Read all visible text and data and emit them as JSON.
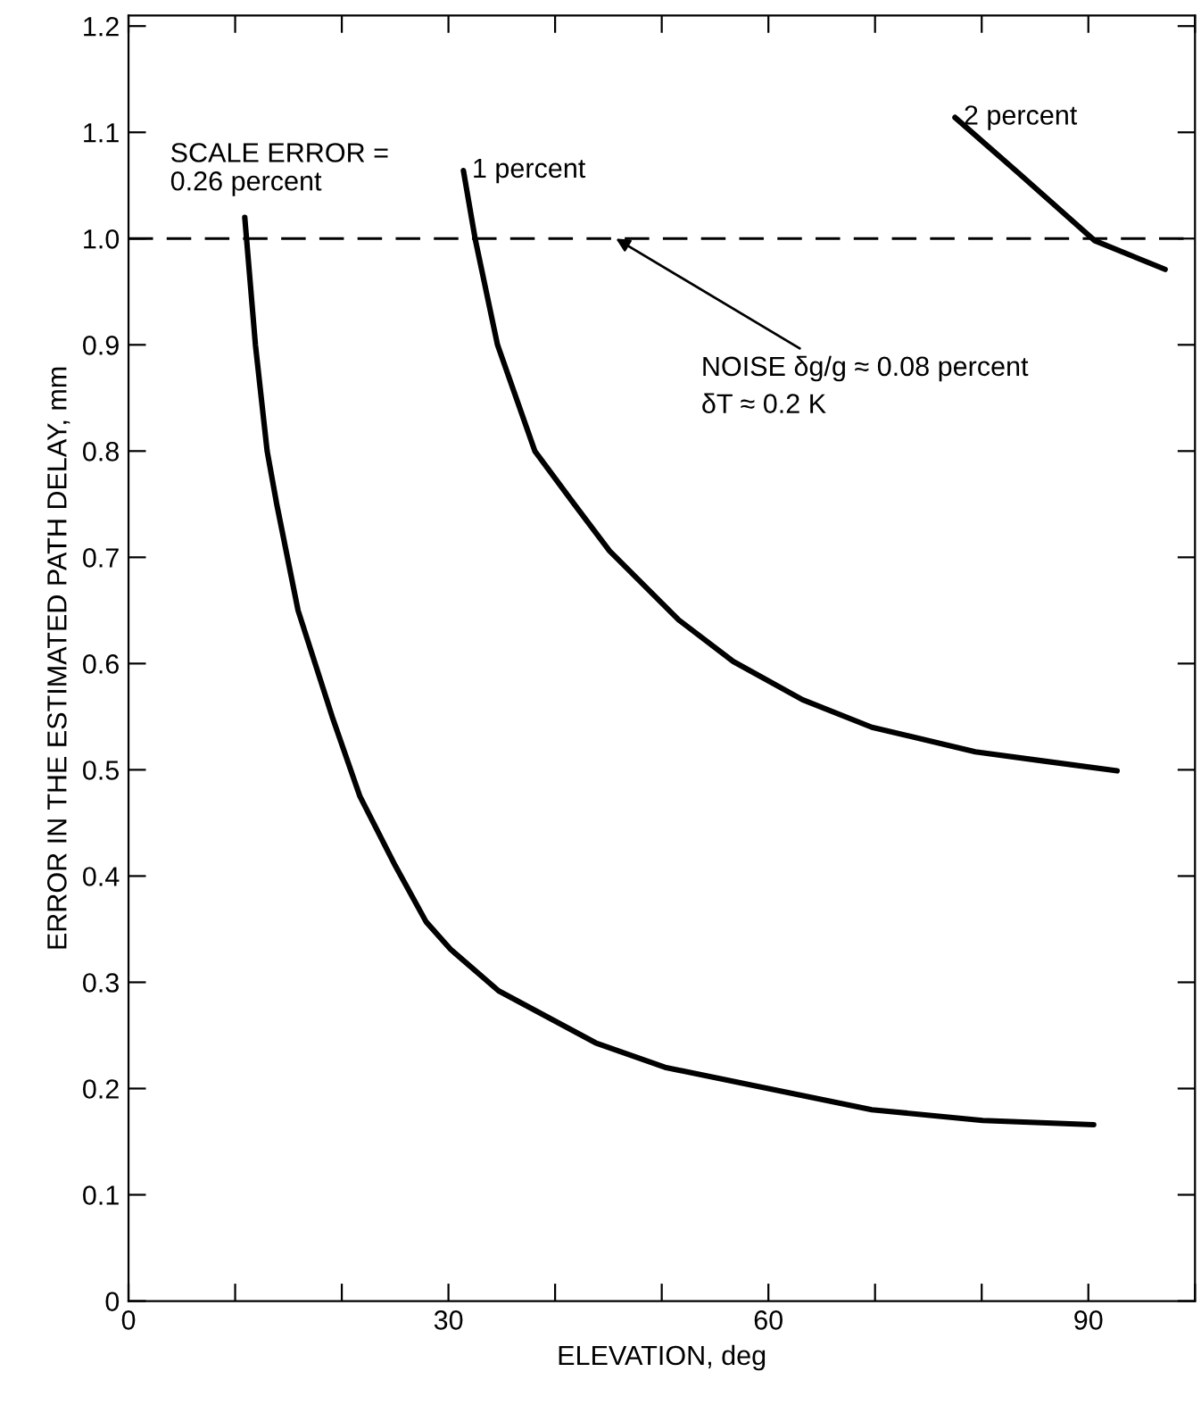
{
  "chart_data": {
    "type": "line",
    "xlabel": "ELEVATION, deg",
    "ylabel": "ERROR IN THE ESTIMATED PATH DELAY, mm",
    "xlim": [
      0,
      100
    ],
    "ylim": [
      0,
      1.21
    ],
    "xticks": [
      0,
      {
        "value": 10,
        "label": null
      },
      {
        "value": 20,
        "label": null
      },
      30,
      {
        "value": 40,
        "label": null
      },
      {
        "value": 50,
        "label": null
      },
      60,
      {
        "value": 70,
        "label": null
      },
      {
        "value": 80,
        "label": null
      },
      90,
      {
        "value": 100,
        "label": null
      }
    ],
    "yticks": [
      0,
      0.1,
      0.2,
      0.3,
      0.4,
      0.5,
      0.6,
      0.7,
      0.8,
      0.9,
      {
        "value": 1.0,
        "label": "1.0"
      },
      1.1,
      1.2
    ],
    "grid": false,
    "marker": "none",
    "line_style": "solid",
    "series": [
      {
        "name": "SCALE ERROR =\n0.26 percent",
        "color": "#000000",
        "x": [
          10.9,
          11.9,
          13.0,
          13.9,
          15.9,
          19.1,
          21.7,
          25.0,
          27.9,
          30.2,
          34.7,
          43.8,
          50.3,
          60,
          69.7,
          80.1,
          90.5
        ],
        "values": [
          1.02,
          0.9,
          0.8,
          0.75,
          0.65,
          0.55,
          0.475,
          0.41,
          0.357,
          0.331,
          0.292,
          0.243,
          0.22,
          0.2,
          0.18,
          0.17,
          0.166
        ]
      },
      {
        "name": "1 percent",
        "color": "#000000",
        "x": [
          31.4,
          32.5,
          34.6,
          38.1,
          41.8,
          45.1,
          51.6,
          56.7,
          63.2,
          69.7,
          79.4,
          86,
          92.7
        ],
        "values": [
          1.064,
          1.0,
          0.9,
          0.8,
          0.75,
          0.706,
          0.641,
          0.602,
          0.566,
          0.54,
          0.517,
          0.508,
          0.499
        ]
      },
      {
        "name": "2 percent",
        "color": "#000000",
        "x": [
          77.5,
          83.3,
          90.6,
          97.2
        ],
        "values": [
          1.114,
          1.063,
          0.998,
          0.971
        ]
      }
    ],
    "ref_lines": [
      {
        "axis": "y",
        "value": 1.0,
        "label": null,
        "color": "#000000",
        "line_style": "dashed"
      }
    ],
    "annotations": [
      {
        "text": "NOISE δg/g ≈ 0.08 percent\nδT ≈ 0.2 K",
        "x": 45.7,
        "y": 1.0
      }
    ]
  }
}
